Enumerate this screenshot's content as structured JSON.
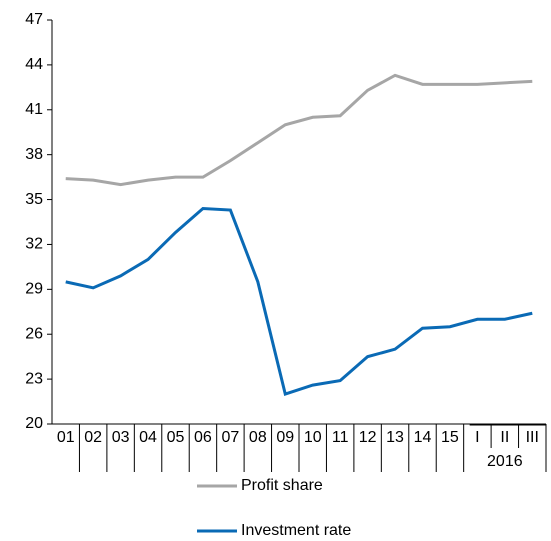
{
  "chart_data": {
    "type": "line",
    "categories": [
      "01",
      "02",
      "03",
      "04",
      "05",
      "06",
      "07",
      "08",
      "09",
      "10",
      "11",
      "12",
      "13",
      "14",
      "15",
      "I",
      "II",
      "III"
    ],
    "x_group": {
      "label": "2016",
      "from": 15,
      "to": 17
    },
    "series": [
      {
        "name": "Profit share",
        "color": "#a6a6a6",
        "values": [
          36.4,
          36.3,
          36.0,
          36.3,
          36.5,
          36.5,
          37.6,
          38.8,
          40.0,
          40.5,
          40.6,
          42.3,
          43.3,
          42.7,
          42.7,
          42.7,
          42.8,
          42.9
        ]
      },
      {
        "name": "Investment rate",
        "color": "#0a6ab5",
        "values": [
          29.5,
          29.1,
          29.9,
          31.0,
          32.8,
          34.4,
          34.3,
          29.5,
          22.0,
          22.6,
          22.9,
          24.5,
          25.0,
          26.4,
          26.5,
          27.0,
          27.0,
          27.4
        ]
      }
    ],
    "ylim": [
      20,
      47
    ],
    "yticks": [
      20,
      23,
      26,
      29,
      32,
      35,
      38,
      41,
      44,
      47
    ],
    "grid": false
  }
}
